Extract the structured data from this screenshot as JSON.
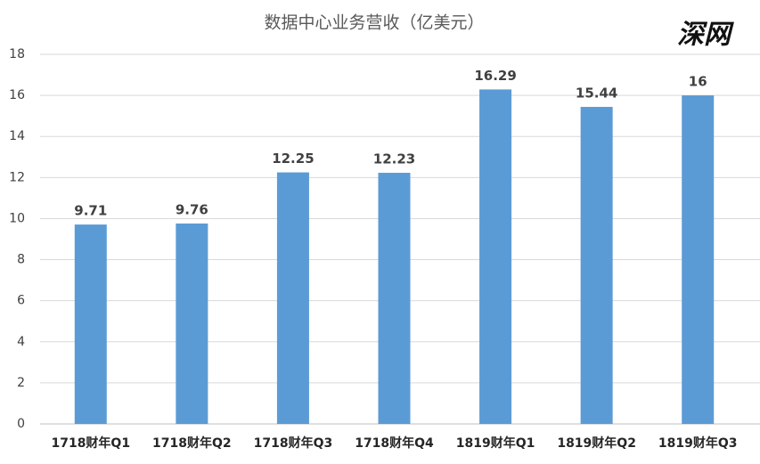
{
  "chart_data": {
    "type": "bar",
    "title": "数据中心业务营收（亿美元）",
    "watermark": "深网",
    "categories": [
      "1718财年Q1",
      "1718财年Q2",
      "1718财年Q3",
      "1718财年Q4",
      "1819财年Q1",
      "1819财年Q2",
      "1819财年Q3"
    ],
    "values": [
      9.71,
      9.76,
      12.25,
      12.23,
      16.29,
      15.44,
      16
    ],
    "color": "#5b9bd5",
    "ylim": [
      0,
      18
    ],
    "yticks": [
      0,
      2,
      4,
      6,
      8,
      10,
      12,
      14,
      16,
      18
    ],
    "grid": true
  }
}
